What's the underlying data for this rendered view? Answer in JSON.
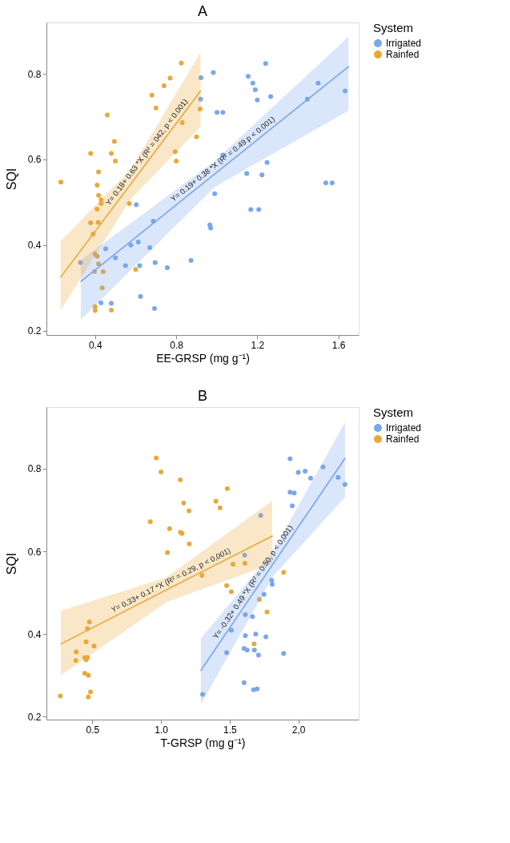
{
  "chart_data": [
    {
      "type": "scatter",
      "title": "A",
      "xlabel": "EE-GRSP (mg g⁻¹)",
      "ylabel": "SQI",
      "legend_title": "System",
      "legend": "right",
      "marker": "circle",
      "xlim": [
        0.16,
        1.7
      ],
      "ylim": [
        0.19,
        0.92
      ],
      "xticks": [
        0.4,
        0.8,
        1.2,
        1.6
      ],
      "yticks": [
        0.2,
        0.4,
        0.6,
        0.8
      ],
      "series": [
        {
          "name": "Irrigated",
          "color": "#7aa6ec",
          "x": [
            0.983,
            0.922,
            0.92,
            1.001,
            1.03,
            1.03,
            0.99,
            0.966,
            0.97,
            0.603,
            0.687,
            0.873,
            0.696,
            0.62,
            0.55,
            0.576,
            0.613,
            0.67,
            0.452,
            0.5,
            0.756,
            0.328,
            0.624,
            0.429,
            0.48,
            0.693,
            1.241,
            1.155,
            1.178,
            1.19,
            1.2,
            1.266,
            1.5,
            1.447,
            1.633,
            1.248,
            1.148,
            1.223,
            1.538,
            1.569,
            1.168,
            1.207
          ],
          "values": [
            0.803,
            0.791,
            0.741,
            0.71,
            0.71,
            0.61,
            0.52,
            0.447,
            0.44,
            0.494,
            0.456,
            0.364,
            0.359,
            0.352,
            0.352,
            0.4,
            0.407,
            0.394,
            0.391,
            0.37,
            0.347,
            0.359,
            0.28,
            0.265,
            0.264,
            0.252,
            0.824,
            0.794,
            0.778,
            0.763,
            0.739,
            0.747,
            0.778,
            0.741,
            0.76,
            0.593,
            0.567,
            0.564,
            0.545,
            0.545,
            0.483,
            0.483
          ]
        },
        {
          "name": "Rainfed",
          "color": "#e8a93a",
          "x": [
            0.231,
            0.825,
            0.77,
            0.74,
            0.68,
            0.7,
            0.46,
            0.495,
            0.378,
            0.48,
            0.5,
            0.417,
            0.41,
            0.417,
            0.43,
            0.43,
            0.41,
            0.569,
            0.378,
            0.415,
            0.39,
            0.918,
            0.9,
            0.795,
            0.8,
            0.6,
            0.4,
            0.41,
            0.417,
            0.397,
            0.44,
            0.435,
            0.4,
            0.4,
            0.48,
            0.83
          ],
          "values": [
            0.547,
            0.825,
            0.79,
            0.772,
            0.75,
            0.72,
            0.704,
            0.642,
            0.614,
            0.614,
            0.596,
            0.571,
            0.54,
            0.516,
            0.506,
            0.497,
            0.484,
            0.497,
            0.452,
            0.453,
            0.426,
            0.718,
            0.653,
            0.618,
            0.596,
            0.343,
            0.379,
            0.374,
            0.356,
            0.338,
            0.338,
            0.3,
            0.256,
            0.247,
            0.248,
            0.686
          ]
        },
        {
          "type": "line",
          "marker": "none",
          "color": "#7aa6ec",
          "x": [
            0.33,
            0.99,
            1.65
          ],
          "values": [
            0.315,
            0.566,
            0.817
          ],
          "lower": [
            0.226,
            0.536,
            0.714
          ],
          "upper": [
            0.365,
            0.596,
            0.887
          ]
        },
        {
          "type": "line",
          "marker": "none",
          "color": "#e8a93a",
          "x": [
            0.23,
            0.575,
            0.92
          ],
          "values": [
            0.325,
            0.542,
            0.76
          ],
          "lower": [
            0.248,
            0.507,
            0.676
          ],
          "upper": [
            0.409,
            0.577,
            0.85
          ]
        }
      ],
      "annotations": [
        {
          "text": "Y= 0.18+ 0.63 *X (R² = 042, p < 0.001)",
          "x": 0.68,
          "y": 0.608
        },
        {
          "text": "Y= 0.19+ 0.38 *X (R² = 0.49 p < 0.001)",
          "x": 1.05,
          "y": 0.589
        }
      ]
    },
    {
      "type": "scatter",
      "title": "B",
      "xlabel": "T-GRSP (mg g⁻¹)",
      "ylabel": "SQI",
      "legend_title": "System",
      "legend": "right",
      "marker": "circle",
      "xlim": [
        0.165,
        2.44
      ],
      "ylim": [
        0.193,
        0.949
      ],
      "xticks": [
        0.5,
        {
          "value": 1.0,
          "label": "1.0"
        },
        1.5,
        {
          "value": 2.0,
          "label": "2,0"
        }
      ],
      "yticks": [
        0.2,
        0.4,
        0.6,
        0.8
      ],
      "series": [
        {
          "name": "Irrigated",
          "color": "#7aa6ec",
          "x": [
            1.94,
            2.0,
            2.05,
            2.09,
            2.18,
            2.29,
            2.34,
            1.94,
            1.97,
            1.956,
            1.726,
            1.609,
            1.806,
            1.81,
            1.75,
            1.666,
            1.614,
            1.512,
            1.614,
            1.69,
            1.764,
            1.605,
            1.627,
            1.68,
            1.71,
            1.478,
            1.893,
            1.605,
            1.674,
            1.7,
            1.303
          ],
          "values": [
            0.824,
            0.791,
            0.794,
            0.777,
            0.804,
            0.779,
            0.762,
            0.743,
            0.741,
            0.71,
            0.687,
            0.591,
            0.53,
            0.52,
            0.496,
            0.442,
            0.447,
            0.409,
            0.396,
            0.4,
            0.393,
            0.365,
            0.361,
            0.361,
            0.349,
            0.355,
            0.353,
            0.282,
            0.265,
            0.267,
            0.254
          ]
        },
        {
          "name": "Rainfed",
          "color": "#e8a93a",
          "x": [
            0.266,
            0.965,
            1.0,
            1.14,
            1.165,
            1.204,
            0.922,
            1.062,
            1.141,
            1.153,
            1.206,
            1.047,
            1.4,
            1.43,
            1.298,
            0.478,
            0.464,
            0.454,
            0.512,
            0.382,
            0.379,
            0.444,
            0.464,
            0.454,
            0.444,
            0.47,
            0.486,
            0.47,
            1.483,
            1.611,
            1.524,
            1.478,
            1.512,
            1.893,
            1.772,
            1.717,
            1.678
          ],
          "values": [
            0.25,
            0.826,
            0.792,
            0.773,
            0.717,
            0.698,
            0.672,
            0.655,
            0.646,
            0.643,
            0.618,
            0.597,
            0.721,
            0.705,
            0.542,
            0.429,
            0.413,
            0.381,
            0.371,
            0.357,
            0.336,
            0.343,
            0.343,
            0.338,
            0.305,
            0.3,
            0.26,
            0.248,
            0.752,
            0.571,
            0.569,
            0.517,
            0.502,
            0.549,
            0.453,
            0.484,
            0.376
          ]
        },
        {
          "type": "line",
          "marker": "none",
          "color": "#e8a93a",
          "x": [
            0.27,
            1.04,
            1.81
          ],
          "values": [
            0.376,
            0.507,
            0.637
          ],
          "lower": [
            0.3,
            0.477,
            0.57
          ],
          "upper": [
            0.456,
            0.537,
            0.722
          ]
        },
        {
          "type": "line",
          "marker": "none",
          "color": "#7aa6ec",
          "x": [
            1.29,
            1.815,
            2.34
          ],
          "values": [
            0.312,
            0.569,
            0.825
          ],
          "lower": [
            0.23,
            0.539,
            0.731
          ],
          "upper": [
            0.389,
            0.599,
            0.912
          ]
        }
      ],
      "annotations": [
        {
          "text": "Y= 0,33+ 0.17 *X (R² = 0.29, p < 0,001)",
          "x": 1.093,
          "y": 0.516
        },
        {
          "text": "Y= -0.32+ 0.49 *X (R² = 0.50, p < 0,001)",
          "x": 1.709,
          "y": 0.517
        }
      ]
    }
  ]
}
